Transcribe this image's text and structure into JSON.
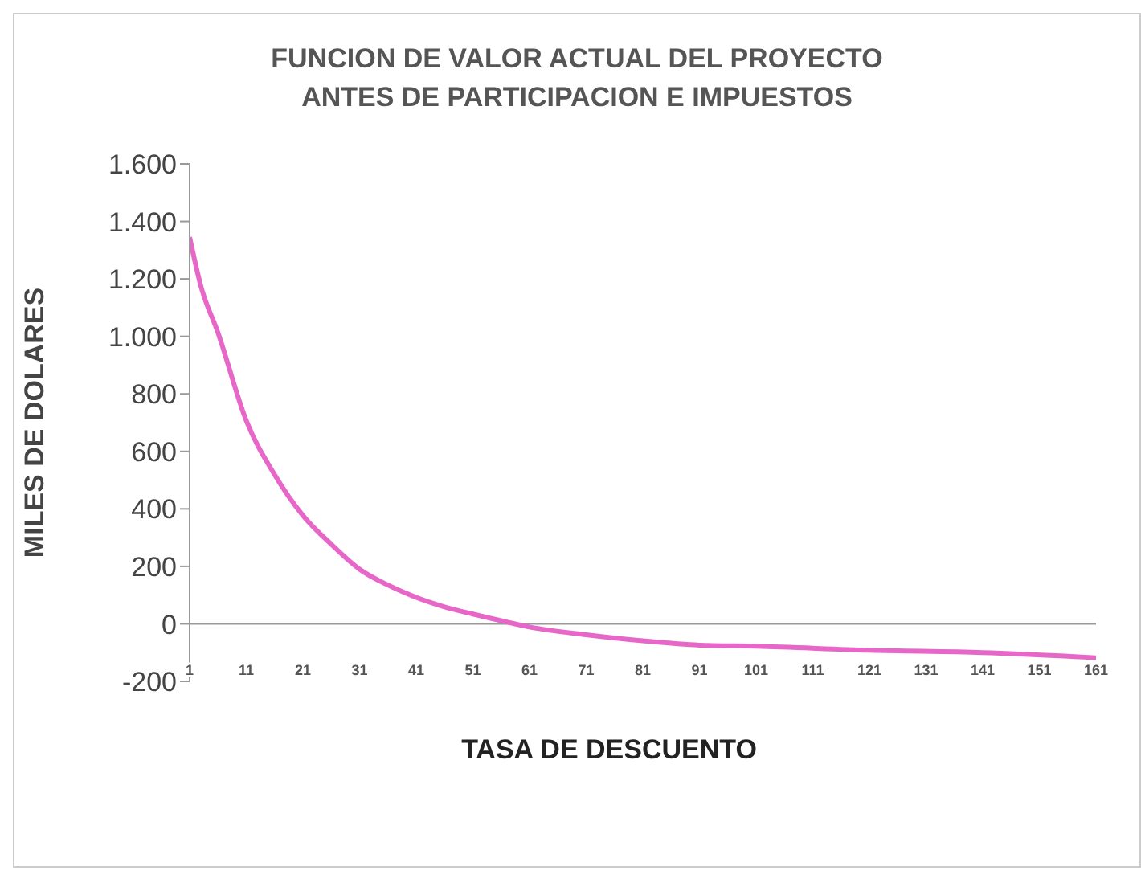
{
  "chart_data": {
    "type": "line",
    "title": "FUNCION DE VALOR ACTUAL DEL PROYECTO\nANTES DE PARTICIPACION E IMPUESTOS",
    "xlabel": "TASA DE DESCUENTO",
    "ylabel": "MILES DE DOLARES",
    "x": [
      1,
      3,
      6,
      11,
      16,
      21,
      26,
      31,
      36,
      41,
      46,
      51,
      56,
      61,
      71,
      81,
      91,
      101,
      121,
      141,
      161
    ],
    "series": [
      {
        "color": "#e667c8",
        "values": [
          1345,
          1174,
          1013,
          707,
          519,
          377,
          277,
          190,
          135,
          92,
          59,
          34,
          11,
          -11,
          -38,
          -59,
          -74,
          -78,
          -92,
          -100,
          -118
        ]
      }
    ],
    "xlim": [
      1,
      161
    ],
    "xticks": [
      1,
      11,
      21,
      31,
      41,
      51,
      61,
      71,
      81,
      91,
      101,
      111,
      121,
      131,
      141,
      151,
      161
    ],
    "ylim": [
      -200,
      1600
    ],
    "yticks": [
      {
        "value": -200,
        "label": "-200"
      },
      0,
      200,
      400,
      600,
      800,
      {
        "value": 1000,
        "label": "1.000"
      },
      {
        "value": 1200,
        "label": "1.200"
      },
      {
        "value": 1400,
        "label": "1.400"
      },
      {
        "value": 1600,
        "label": "1.600"
      }
    ],
    "ref_lines": [
      {
        "axis": "y",
        "value": 0,
        "color": "#999999"
      }
    ],
    "grid": false,
    "legend": false,
    "marker": "none",
    "line_style": "solid"
  }
}
